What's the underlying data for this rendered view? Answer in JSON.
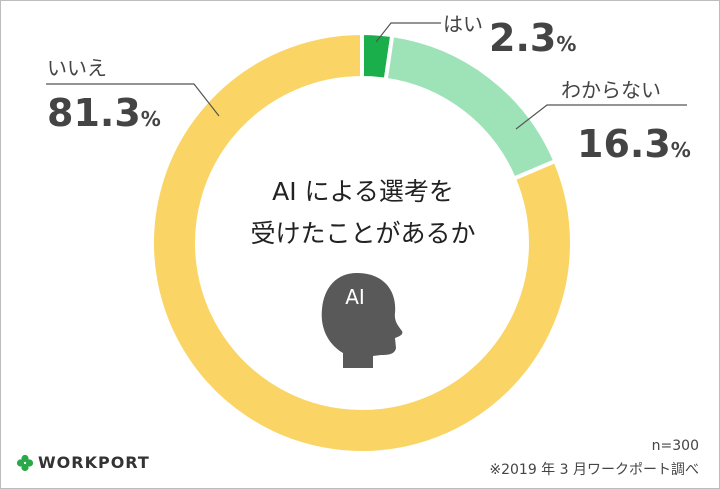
{
  "chart_data": {
    "type": "pie",
    "title": "AI による選考を受けたことがあるか",
    "title_lines": [
      "AI による選考を",
      "受けたことがあるか"
    ],
    "badge": "AI",
    "unit": "%",
    "slices": [
      {
        "label": "はい",
        "value": 2.3,
        "display": "2.3",
        "color": "#1aaf4b"
      },
      {
        "label": "わからない",
        "value": 16.3,
        "display": "16.3",
        "color": "#9ee3b8"
      },
      {
        "label": "いいえ",
        "value": 81.3,
        "display": "81.3",
        "color": "#fad565"
      }
    ]
  },
  "footer": {
    "n": "n=300",
    "source": "※2019 年 3 月ワークポート調べ",
    "logo": "WORKPORT",
    "logo_icon": "clover-icon"
  }
}
